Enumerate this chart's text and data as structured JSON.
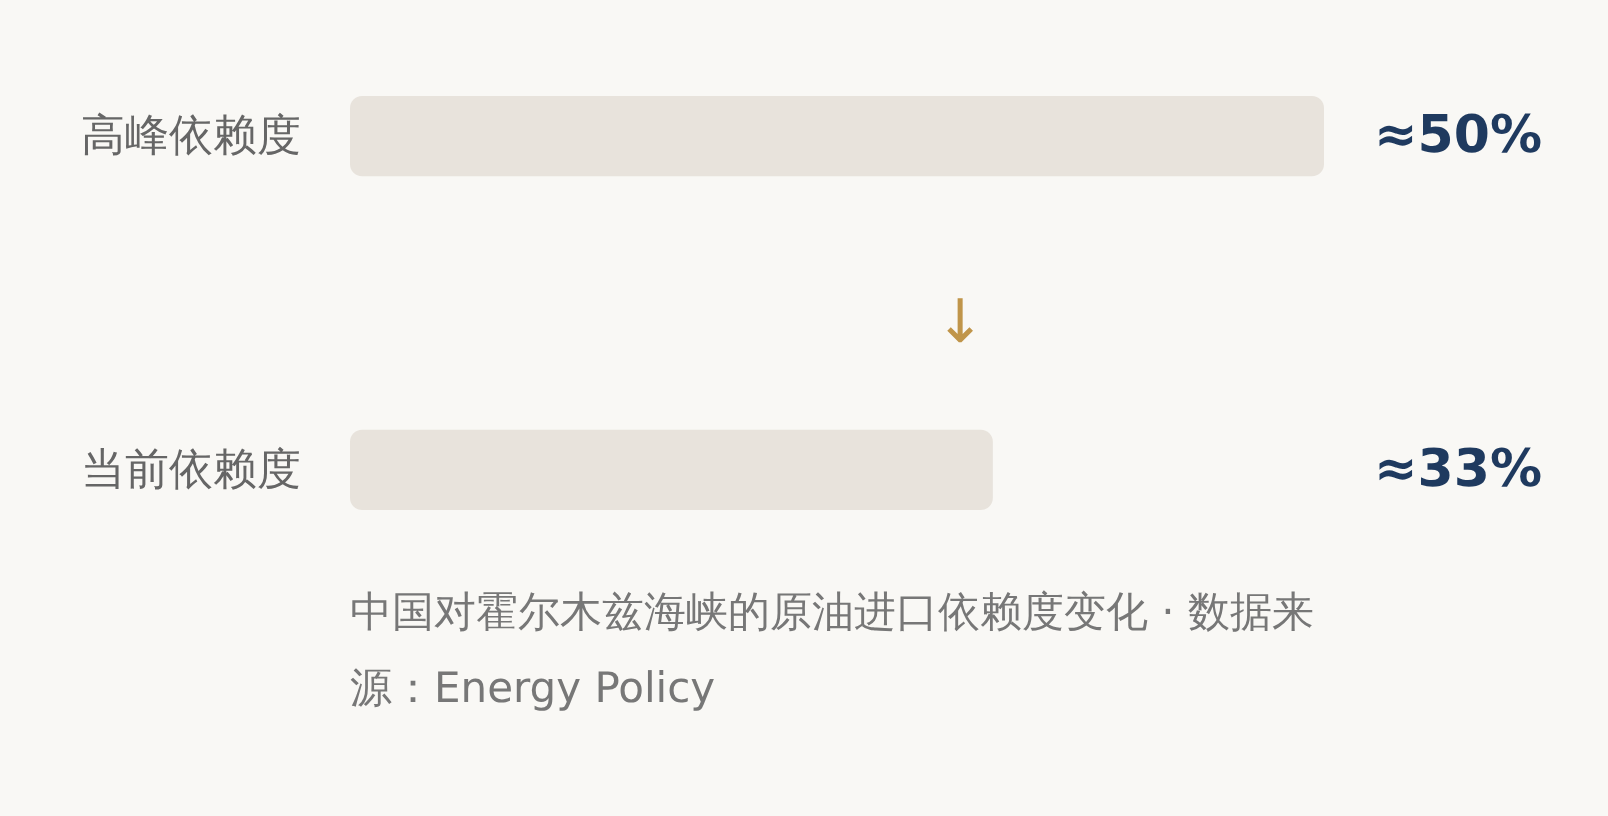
{
  "chart_data": {
    "type": "bar",
    "orientation": "horizontal",
    "categories": [
      "高峰依赖度",
      "当前依赖度"
    ],
    "values": [
      50,
      33
    ],
    "value_labels": [
      "≈50%",
      "≈33%"
    ],
    "color": "#e8e3dc",
    "xlim": [
      0,
      50
    ],
    "annotations": [
      "↓",
      "中国对霍尔木兹海峡的原油进口依赖度变化 · 数据来源：Energy Policy"
    ]
  }
}
